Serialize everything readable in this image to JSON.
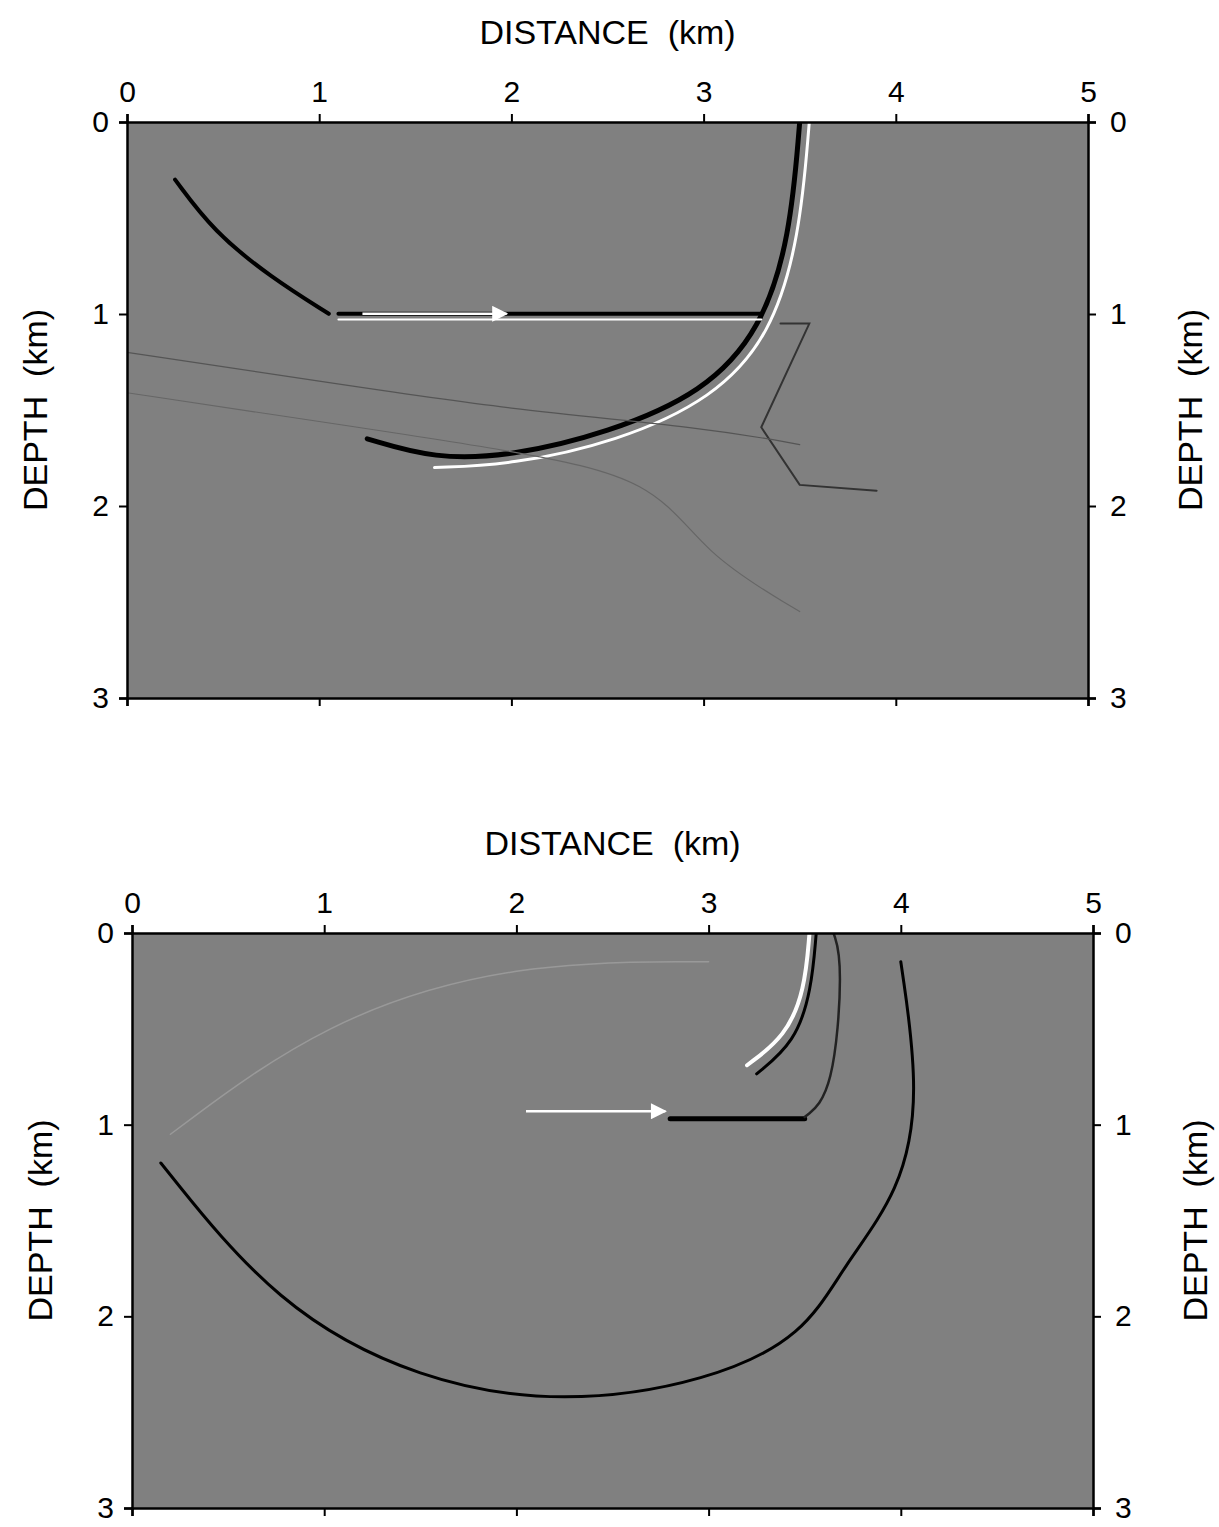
{
  "chart_data": [
    {
      "type": "image",
      "xlabel": "DISTANCE  (km)",
      "ylabel": "DEPTH  (km)",
      "xlim": [
        0,
        5
      ],
      "ylim": [
        3,
        0
      ],
      "xticks": [
        0,
        1,
        2,
        3,
        4,
        5
      ],
      "yticks": [
        0,
        1,
        2,
        3
      ]
    },
    {
      "type": "image",
      "xlabel": "DISTANCE  (km)",
      "ylabel": "DEPTH  (km)",
      "xlim": [
        0,
        5
      ],
      "ylim": [
        3,
        0
      ],
      "xticks": [
        0,
        1,
        2,
        3,
        4,
        5
      ],
      "yticks": [
        0,
        1,
        2,
        3
      ]
    }
  ]
}
